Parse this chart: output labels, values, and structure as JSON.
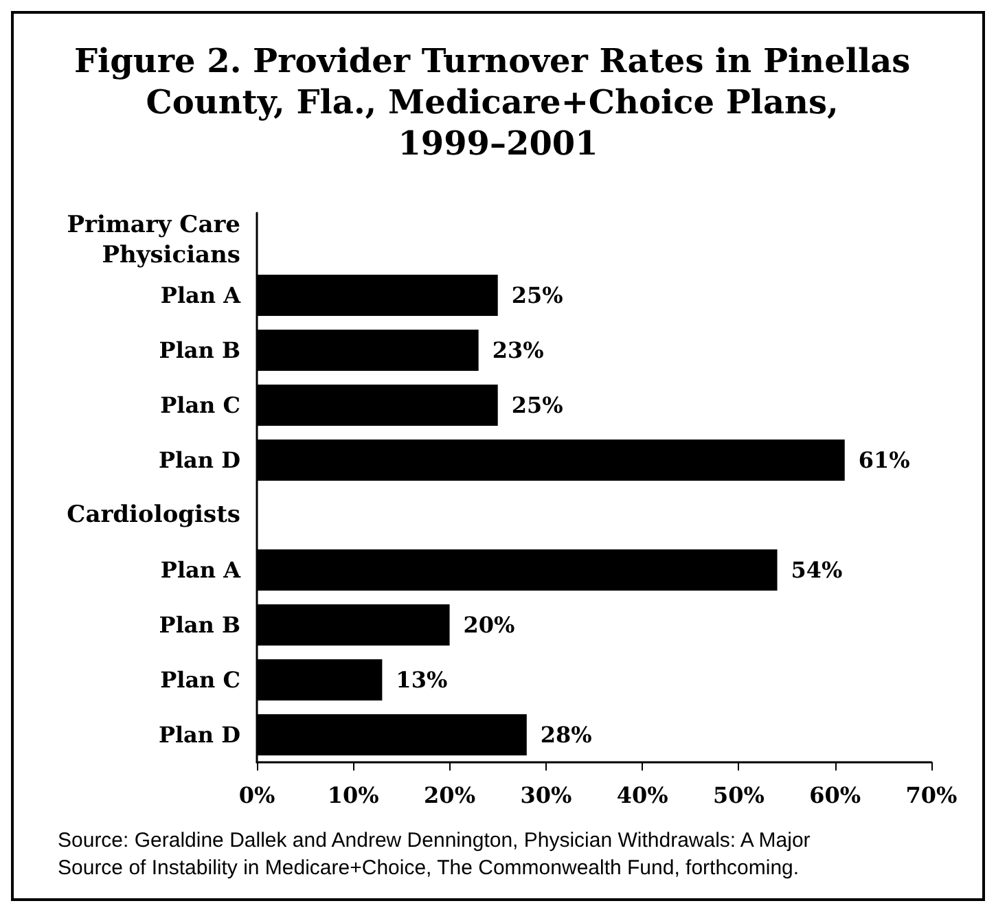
{
  "chart_data": {
    "type": "bar",
    "orientation": "horizontal",
    "title": "Figure 2. Provider Turnover Rates in Pinellas County, Fla., Medicare+Choice Plans, 1999–2001",
    "categories": [
      "Primary Care\nPhysicians",
      "Plan A",
      "Plan B",
      "Plan C",
      "Plan D",
      "Cardiologists",
      "Plan A",
      "Plan B",
      "Plan C",
      "Plan D"
    ],
    "values": [
      null,
      25,
      23,
      25,
      61,
      null,
      54,
      20,
      13,
      28
    ],
    "value_labels": [
      null,
      "25%",
      "23%",
      "25%",
      "61%",
      null,
      "54%",
      "20%",
      "13%",
      "28%"
    ],
    "color": "#000000",
    "xlim": [
      0,
      70
    ],
    "xticks": [
      {
        "value": 0,
        "label": "0%"
      },
      {
        "value": 10,
        "label": "10%"
      },
      {
        "value": 20,
        "label": "20%"
      },
      {
        "value": 30,
        "label": "30%"
      },
      {
        "value": 40,
        "label": "40%"
      },
      {
        "value": 50,
        "label": "50%"
      },
      {
        "value": 60,
        "label": "60%"
      },
      {
        "value": 70,
        "label": "70%"
      }
    ],
    "grid": false,
    "annotations": [
      "Source: Geraldine Dallek and Andrew Dennington, Physician Withdrawals: A Major Source of Instability in Medicare+Choice, The Commonwealth Fund, forthcoming."
    ]
  }
}
